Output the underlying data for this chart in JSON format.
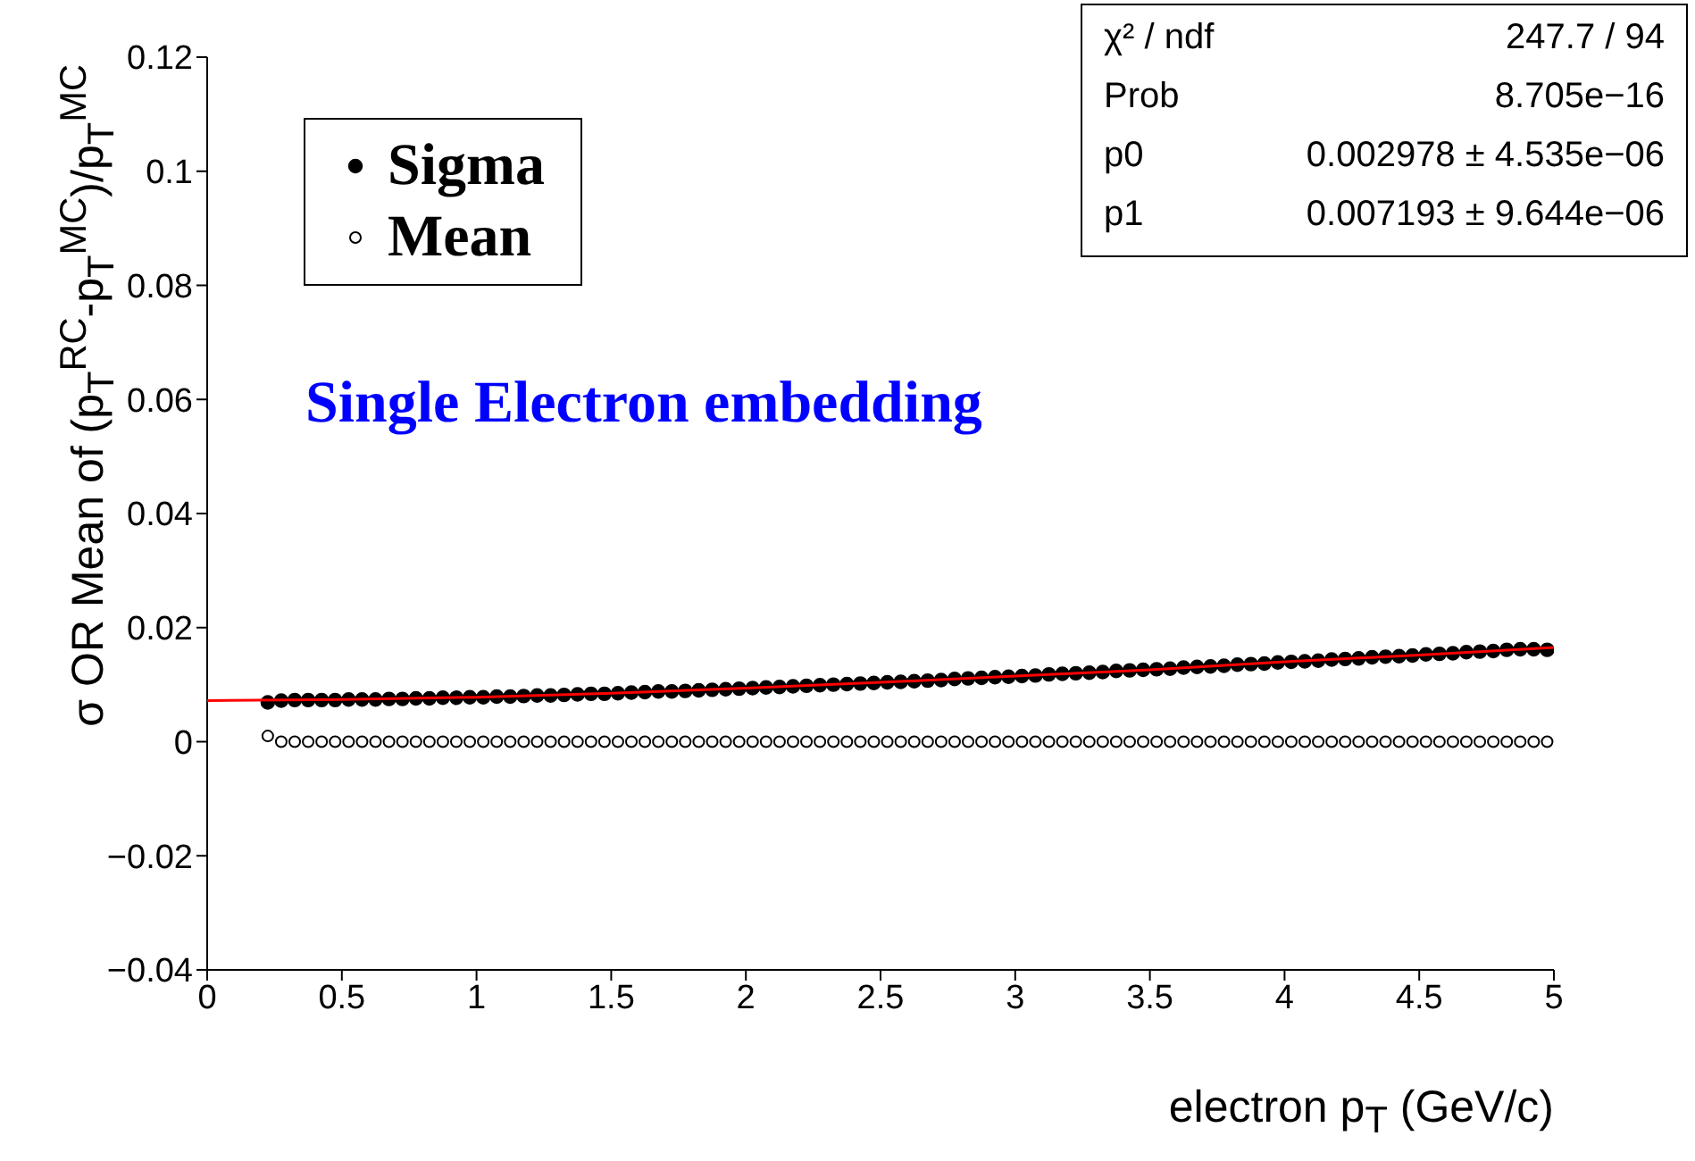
{
  "chart_data": {
    "type": "scatter",
    "xlabel": "electron p$_{T}$ (GeV/c)",
    "ylabel": "σ OR Mean of (p$_{T}$$^{RC}$-p$_{T}$$^{MC}$)/p$_{T}$$^{MC}$",
    "x": [
      0.225,
      0.275,
      0.325,
      0.375,
      0.425,
      0.475,
      0.525,
      0.575,
      0.625,
      0.675,
      0.725,
      0.775,
      0.825,
      0.875,
      0.925,
      0.975,
      1.025,
      1.075,
      1.125,
      1.175,
      1.225,
      1.275,
      1.325,
      1.375,
      1.425,
      1.475,
      1.525,
      1.575,
      1.625,
      1.675,
      1.725,
      1.775,
      1.825,
      1.875,
      1.925,
      1.975,
      2.025,
      2.075,
      2.125,
      2.175,
      2.225,
      2.275,
      2.325,
      2.375,
      2.425,
      2.475,
      2.525,
      2.575,
      2.625,
      2.675,
      2.725,
      2.775,
      2.825,
      2.875,
      2.925,
      2.975,
      3.025,
      3.075,
      3.125,
      3.175,
      3.225,
      3.275,
      3.325,
      3.375,
      3.425,
      3.475,
      3.525,
      3.575,
      3.625,
      3.675,
      3.725,
      3.775,
      3.825,
      3.875,
      3.925,
      3.975,
      4.025,
      4.075,
      4.125,
      4.175,
      4.225,
      4.275,
      4.325,
      4.375,
      4.425,
      4.475,
      4.525,
      4.575,
      4.625,
      4.675,
      4.725,
      4.775,
      4.825,
      4.875,
      4.925,
      4.975
    ],
    "series": [
      {
        "name": "Sigma",
        "color": "#000000",
        "marker": "circle",
        "values": [
          0.0069,
          0.0072,
          0.0073,
          0.0073,
          0.0073,
          0.0073,
          0.0074,
          0.0074,
          0.0074,
          0.0075,
          0.0075,
          0.0076,
          0.0076,
          0.0077,
          0.0077,
          0.0078,
          0.0078,
          0.0079,
          0.0079,
          0.008,
          0.0081,
          0.0081,
          0.0082,
          0.0083,
          0.0084,
          0.0084,
          0.0085,
          0.0086,
          0.0087,
          0.0088,
          0.0088,
          0.0089,
          0.009,
          0.0091,
          0.0092,
          0.0093,
          0.0094,
          0.0095,
          0.0096,
          0.0097,
          0.0098,
          0.0099,
          0.01,
          0.0101,
          0.0102,
          0.0103,
          0.0104,
          0.0105,
          0.0106,
          0.0107,
          0.0108,
          0.011,
          0.0111,
          0.0112,
          0.0113,
          0.0114,
          0.0115,
          0.0116,
          0.0118,
          0.0119,
          0.012,
          0.0121,
          0.0122,
          0.0124,
          0.0125,
          0.0126,
          0.0127,
          0.0128,
          0.013,
          0.0131,
          0.0132,
          0.0133,
          0.0135,
          0.0136,
          0.0137,
          0.0139,
          0.014,
          0.0141,
          0.0142,
          0.0144,
          0.0145,
          0.0146,
          0.0148,
          0.0149,
          0.015,
          0.0151,
          0.0153,
          0.0154,
          0.0155,
          0.0157,
          0.0158,
          0.0159,
          0.0161,
          0.0162,
          0.0162,
          0.0161
        ]
      },
      {
        "name": "Mean",
        "color": "#000000",
        "marker": "circle",
        "values": [
          0.001,
          0,
          0,
          0,
          0,
          0,
          0,
          0,
          0,
          0,
          0,
          0,
          0,
          0,
          0,
          0,
          0,
          0,
          0,
          0,
          0,
          0,
          0,
          0,
          0,
          0,
          0,
          0,
          0,
          0,
          0,
          0,
          0,
          0,
          0,
          0,
          0,
          0,
          0,
          0,
          0,
          0,
          0,
          0,
          0,
          0,
          0,
          0,
          0,
          0,
          0,
          0,
          0,
          0,
          0,
          0,
          0,
          0,
          0,
          0,
          0,
          0,
          0,
          0,
          0,
          0,
          0,
          0,
          0,
          0,
          0,
          0,
          0,
          0,
          0,
          0,
          0,
          0,
          0,
          0,
          0,
          0,
          0,
          0,
          0,
          0,
          0,
          0,
          0,
          0,
          0,
          0,
          0,
          0,
          0,
          0
        ]
      },
      {
        "type": "line",
        "color": "#ff0000",
        "x": [
          0,
          0.5,
          1,
          1.5,
          2,
          2.5,
          3,
          3.5,
          4,
          4.5,
          5
        ],
        "values": [
          0.0072,
          0.0074,
          0.0078,
          0.0085,
          0.0094,
          0.0104,
          0.0115,
          0.0126,
          0.014,
          0.0152,
          0.0165
        ]
      }
    ],
    "xlim": [
      0,
      5
    ],
    "xticks": [
      0,
      0.5,
      1,
      1.5,
      2,
      2.5,
      3,
      3.5,
      4,
      4.5,
      5
    ],
    "ylim": [
      -0.04,
      0.12
    ],
    "yticks": [
      {
        "value": -0.04,
        "label": "−0.04"
      },
      {
        "value": -0.02,
        "label": "−0.02"
      },
      0,
      0.02,
      0.04,
      0.06,
      0.08,
      0.1,
      0.12
    ],
    "grid": false,
    "legend": "top left",
    "annotations": [
      "Single Electron embedding",
      "χ² / ndf",
      "247.7 / 94",
      "Prob",
      "8.705e−16",
      "p0",
      "0.002978 ± 4.535e−06",
      "p1",
      "0.007193 ± 9.644e−06"
    ]
  }
}
